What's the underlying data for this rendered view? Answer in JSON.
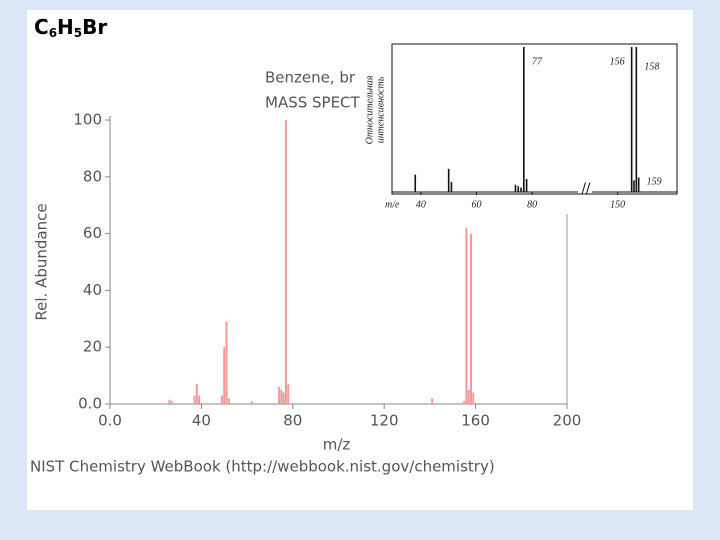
{
  "slide_title": {
    "parts": [
      "C",
      "6",
      "H",
      "5",
      "Br"
    ]
  },
  "chart_data": [
    {
      "type": "stem",
      "title": "Benzene, br",
      "subtitle": "MASS SPECT",
      "x_label": "m/z",
      "y_label": "Rel. Abundance",
      "source": "NIST Chemistry WebBook (http://webbook.nist.gov/chemistry)",
      "color": "#f29a9a",
      "x": [
        26,
        27,
        37,
        38,
        39,
        49,
        50,
        51,
        52,
        62,
        74,
        75,
        76,
        77,
        78,
        141,
        155,
        156,
        157,
        158,
        159
      ],
      "values": [
        1.5,
        1,
        3,
        7,
        3,
        3,
        20,
        29,
        2,
        1,
        6,
        5,
        4,
        100,
        7,
        2,
        1,
        62,
        5,
        60,
        4
      ],
      "xlim": [
        0,
        200
      ],
      "ylim": [
        0,
        100
      ],
      "xticks": [
        {
          "value": 0,
          "label": "0.0"
        },
        40,
        80,
        120,
        160,
        200
      ],
      "yticks": [
        {
          "value": 0,
          "label": "0.0"
        },
        20,
        40,
        60,
        80,
        100
      ]
    },
    {
      "type": "stem",
      "y_label": [
        "Относительная",
        "интенсивность"
      ],
      "x_label": "m/e",
      "color": "#111111",
      "x": [
        38,
        50,
        51,
        74,
        75,
        76,
        77,
        78,
        156,
        157,
        158,
        159
      ],
      "values": [
        12,
        16,
        7,
        5,
        4,
        3,
        100,
        9,
        100,
        8,
        100,
        10
      ],
      "xlim": [
        30,
        175
      ],
      "xbreak": [
        90,
        136
      ],
      "ylim": [
        0,
        100
      ],
      "xticks": [
        40,
        60,
        80,
        150
      ],
      "peak_labels": [
        77,
        156,
        158,
        159
      ]
    }
  ]
}
